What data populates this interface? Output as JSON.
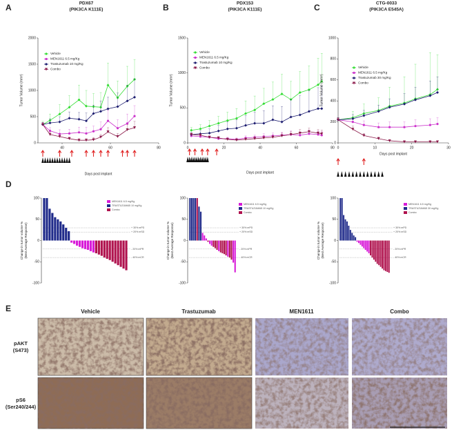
{
  "panel_labels": [
    "A",
    "B",
    "C",
    "D",
    "E"
  ],
  "chart_data": [
    {
      "type": "line",
      "title": "PDX67",
      "subtitle": "(PIK3CA K111E)",
      "x_label": "Days post implant",
      "y_label": "Tumor Volume (mm³)",
      "x": [
        32,
        35,
        39,
        43,
        47,
        50,
        53,
        56,
        59,
        63,
        67,
        70
      ],
      "xlim": [
        30,
        80
      ],
      "xticks": [
        40,
        60,
        80
      ],
      "ylim": [
        0,
        2000
      ],
      "yticks": [
        0,
        500,
        1000,
        1500,
        2000
      ],
      "series": [
        {
          "name": "Vehicle",
          "color": "#33dd33",
          "marker": "diamond",
          "values": [
            350,
            430,
            550,
            680,
            820,
            700,
            690,
            680,
            1100,
            860,
            1080,
            1210
          ],
          "errors": [
            60,
            120,
            180,
            220,
            280,
            300,
            250,
            280,
            420,
            320,
            380,
            380
          ]
        },
        {
          "name": "MEN1611 6.5 mg/Kg",
          "color": "#cc33cc",
          "marker": "circle",
          "values": [
            350,
            230,
            170,
            180,
            200,
            180,
            220,
            260,
            420,
            280,
            370,
            510
          ],
          "errors": [
            40,
            60,
            80,
            80,
            100,
            120,
            100,
            140,
            200,
            160,
            180,
            200
          ]
        },
        {
          "name": "Trastuzumab 10 mg/Kg",
          "color": "#1a1a6e",
          "marker": "diamond",
          "values": [
            350,
            380,
            400,
            470,
            450,
            420,
            560,
            600,
            650,
            690,
            800,
            870
          ],
          "errors": [
            40,
            80,
            100,
            120,
            130,
            150,
            160,
            200,
            220,
            260,
            300,
            350
          ]
        },
        {
          "name": "Combo",
          "color": "#8b1a4a",
          "marker": "triangle-down",
          "values": [
            350,
            160,
            120,
            80,
            50,
            50,
            60,
            110,
            210,
            120,
            250,
            290
          ],
          "errors": [
            40,
            40,
            40,
            30,
            30,
            30,
            40,
            50,
            80,
            60,
            100,
            120
          ]
        }
      ],
      "arrow_days": [
        32,
        39,
        44,
        50,
        53,
        56,
        59,
        65,
        67,
        70
      ],
      "triangle_days": [
        32,
        33,
        34,
        35,
        36,
        37,
        38,
        39,
        40,
        41,
        42,
        43
      ]
    },
    {
      "type": "line",
      "title": "PDX153",
      "subtitle": "(PIK3CA K111E)",
      "x_label": "Days post implant",
      "y_label": "Tumor Volume (mm³)",
      "x": [
        2,
        7,
        12,
        17,
        22,
        27,
        32,
        37,
        42,
        47,
        52,
        57,
        62,
        67,
        72,
        74
      ],
      "xlim": [
        0,
        80
      ],
      "xticks": [
        0,
        20,
        40,
        60,
        80
      ],
      "ylim": [
        0,
        1500
      ],
      "yticks": [
        0,
        500,
        1000,
        1500
      ],
      "series": [
        {
          "name": "Vehicle",
          "color": "#33dd33",
          "marker": "diamond",
          "values": [
            180,
            200,
            240,
            280,
            320,
            350,
            420,
            470,
            560,
            620,
            700,
            620,
            720,
            760,
            830,
            880
          ],
          "errors": [
            40,
            60,
            80,
            100,
            120,
            140,
            180,
            200,
            220,
            250,
            280,
            260,
            300,
            340,
            380,
            400
          ]
        },
        {
          "name": "MEN1611 6.5 mg/Kg",
          "color": "#cc33cc",
          "marker": "circle",
          "values": [
            100,
            90,
            80,
            60,
            60,
            50,
            70,
            80,
            90,
            100,
            110,
            120,
            110,
            130,
            120,
            110
          ],
          "errors": [
            20,
            20,
            20,
            20,
            20,
            20,
            30,
            30,
            40,
            40,
            40,
            50,
            40,
            50,
            50,
            50
          ]
        },
        {
          "name": "Trastuzumab 10 mg/Kg",
          "color": "#1a1a6e",
          "marker": "diamond",
          "values": [
            120,
            130,
            140,
            170,
            200,
            210,
            250,
            280,
            280,
            330,
            300,
            370,
            400,
            450,
            490,
            490
          ],
          "errors": [
            30,
            40,
            60,
            80,
            100,
            120,
            140,
            160,
            180,
            200,
            220,
            250,
            280,
            300,
            300,
            320
          ]
        },
        {
          "name": "Combo",
          "color": "#8b1a4a",
          "marker": "triangle-down",
          "values": [
            120,
            110,
            80,
            70,
            50,
            40,
            50,
            60,
            70,
            80,
            100,
            120,
            140,
            160,
            140,
            130
          ],
          "errors": [
            20,
            20,
            20,
            20,
            20,
            20,
            20,
            30,
            30,
            30,
            40,
            40,
            50,
            50,
            50,
            50
          ]
        }
      ],
      "arrow_days": [
        1,
        4,
        8,
        11,
        16
      ],
      "triangle_days": [
        0,
        1,
        2,
        3,
        4,
        5,
        6,
        7,
        8,
        9,
        10,
        11
      ]
    },
    {
      "type": "line",
      "title": "CTG-0033",
      "subtitle": "(PIK3CA E545A)",
      "x_label": "Days post implant",
      "y_label": "Tumor Volume (mm³)",
      "x": [
        0,
        4,
        7,
        11,
        14,
        18,
        21,
        25,
        27
      ],
      "xlim": [
        0,
        30
      ],
      "xticks": [
        0,
        10,
        20,
        30
      ],
      "ylim": [
        0,
        1000
      ],
      "yticks": [
        0,
        200,
        400,
        600,
        800,
        1000
      ],
      "series": [
        {
          "name": "Vehicle",
          "color": "#33dd33",
          "marker": "diamond",
          "values": [
            220,
            240,
            280,
            310,
            350,
            380,
            420,
            460,
            510
          ],
          "errors": [
            20,
            60,
            90,
            120,
            180,
            250,
            330,
            400,
            330
          ]
        },
        {
          "name": "MEN1611 6.5 mg/Kg",
          "color": "#cc33cc",
          "marker": "circle",
          "values": [
            220,
            200,
            170,
            150,
            150,
            150,
            160,
            170,
            180
          ],
          "errors": [
            20,
            30,
            40,
            40,
            50,
            50,
            60,
            60,
            60
          ]
        },
        {
          "name": "Trastuzumab 30 mg/Kg",
          "color": "#1a1a6e",
          "marker": "diamond",
          "values": [
            220,
            230,
            260,
            300,
            340,
            370,
            410,
            450,
            480
          ],
          "errors": [
            20,
            40,
            50,
            60,
            80,
            100,
            120,
            140,
            150
          ]
        },
        {
          "name": "Combo",
          "color": "#8b1a4a",
          "marker": "triangle-down",
          "values": [
            220,
            130,
            70,
            40,
            20,
            10,
            10,
            10,
            10
          ],
          "errors": [
            20,
            30,
            20,
            15,
            10,
            5,
            5,
            5,
            5
          ]
        }
      ],
      "arrow_days": [
        0,
        7
      ],
      "triangle_days": [
        0,
        1,
        2,
        3,
        4,
        5,
        6,
        7,
        8,
        9,
        10,
        11,
        12
      ]
    },
    {
      "type": "waterfall",
      "y_label": [
        "Change in tumor volume %",
        "(Best Average Response)"
      ],
      "ylim": [
        -100,
        100
      ],
      "yticks": [
        -100,
        -50,
        0,
        50,
        100
      ],
      "reference_lines": [
        {
          "value": 30,
          "label": "+ 30% mPD"
        },
        {
          "value": 20,
          "label": "+ 20% mSD"
        },
        {
          "value": -20,
          "label": "- 20% mPR"
        },
        {
          "value": -40,
          "label": "- 40% mCR"
        }
      ],
      "series": [
        {
          "name": "MEN1611 6.5 mg/Kg",
          "color": "#d81bd8",
          "values": [
            null,
            null,
            null,
            null,
            null,
            null,
            null,
            null,
            null,
            null,
            -5,
            -8,
            -12,
            -15,
            -18,
            -20,
            -22,
            -25,
            -28,
            null,
            null,
            null,
            null,
            null,
            null,
            null,
            null,
            null,
            null,
            null,
            null
          ]
        },
        {
          "name": "TRASTUZUMAB 10 mg/Kg",
          "color": "#1f2a8a",
          "values": [
            100,
            100,
            75,
            65,
            55,
            50,
            45,
            38,
            30,
            22,
            null,
            null,
            null,
            null,
            null,
            null,
            null,
            null,
            null,
            null,
            null,
            null,
            null,
            null,
            null,
            null,
            null,
            null,
            null,
            null,
            null
          ]
        },
        {
          "name": "Combo",
          "color": "#b0124e",
          "values": [
            null,
            null,
            null,
            null,
            null,
            null,
            null,
            null,
            null,
            null,
            null,
            null,
            null,
            null,
            null,
            null,
            null,
            null,
            null,
            -30,
            -33,
            -36,
            -40,
            -43,
            -46,
            -50,
            -54,
            -58,
            -62,
            -66,
            -70
          ]
        }
      ]
    },
    {
      "type": "waterfall",
      "y_label": [
        "Change in tumor volume %",
        "(Best Average Response)"
      ],
      "ylim": [
        -100,
        100
      ],
      "yticks": [
        -100,
        -50,
        0,
        50,
        100
      ],
      "reference_lines": [
        {
          "value": 30,
          "label": "+ 30% mPD"
        },
        {
          "value": 20,
          "label": "+ 20% mSD"
        },
        {
          "value": -20,
          "label": "- 20% mPR"
        },
        {
          "value": -40,
          "label": "- 40% mCR"
        }
      ],
      "series": [
        {
          "name": "MEN1611 6.5 mg/Kg",
          "color": "#d81bd8",
          "values": [
            null,
            null,
            null,
            null,
            null,
            null,
            null,
            18,
            12,
            5,
            null,
            -8,
            -12,
            null,
            null,
            null,
            -25,
            null,
            null,
            null,
            null,
            -38,
            null,
            null,
            -52,
            -75
          ]
        },
        {
          "name": "TRASTUZUMAB 10 mg/Kg",
          "color": "#1f2a8a",
          "values": [
            100,
            100,
            100,
            100,
            null,
            80,
            68,
            null,
            null,
            null,
            null,
            null,
            null,
            null,
            null,
            null,
            null,
            null,
            null,
            null,
            null,
            null,
            null,
            null,
            null,
            null
          ]
        },
        {
          "name": "Combo",
          "color": "#b0124e",
          "values": [
            null,
            null,
            null,
            null,
            100,
            null,
            null,
            null,
            null,
            null,
            -3,
            null,
            null,
            -15,
            -18,
            -22,
            null,
            -28,
            -30,
            -32,
            -35,
            null,
            -40,
            -45,
            null,
            null
          ]
        }
      ]
    },
    {
      "type": "waterfall",
      "y_label": [
        "Change in tumor volume %",
        "(Best Average Response)"
      ],
      "ylim": [
        -100,
        100
      ],
      "yticks": [
        -100,
        -50,
        0,
        50,
        100
      ],
      "reference_lines": [
        {
          "value": 30,
          "label": "+ 30% mPD"
        },
        {
          "value": 20,
          "label": "+ 20% mSD"
        },
        {
          "value": -20,
          "label": "- 20% mPR"
        },
        {
          "value": -40,
          "label": "- 40% mCR"
        }
      ],
      "series": [
        {
          "name": "MEN1611 6.5 mg/Kg",
          "color": "#d81bd8",
          "values": [
            null,
            null,
            null,
            null,
            null,
            null,
            null,
            null,
            null,
            null,
            -3,
            -6,
            -10,
            -14,
            -18,
            -22,
            -26,
            -30,
            null,
            null,
            null,
            null,
            null,
            null,
            null,
            null,
            null,
            null,
            null,
            null
          ]
        },
        {
          "name": "TRASTUZUMAB 30 mg/Kg",
          "color": "#1f2a8a",
          "values": [
            100,
            100,
            60,
            50,
            45,
            35,
            25,
            18,
            12,
            8,
            null,
            null,
            null,
            null,
            null,
            null,
            null,
            null,
            null,
            null,
            null,
            null,
            null,
            null,
            null,
            null,
            null,
            null,
            null,
            null
          ]
        },
        {
          "name": "Combo",
          "color": "#b0124e",
          "values": [
            null,
            null,
            null,
            null,
            null,
            null,
            null,
            null,
            null,
            null,
            null,
            null,
            null,
            null,
            null,
            null,
            null,
            null,
            -35,
            -40,
            -45,
            -50,
            -55,
            -58,
            -62,
            -66,
            -70,
            -72,
            -74,
            -76
          ]
        }
      ]
    }
  ],
  "histology": {
    "columns": [
      "Vehicle",
      "Trastuzumab",
      "MEN1611",
      "Combo"
    ],
    "rows": [
      [
        "pAKT",
        "(S473)"
      ],
      [
        "pS6",
        "(Ser240/244)"
      ]
    ]
  }
}
